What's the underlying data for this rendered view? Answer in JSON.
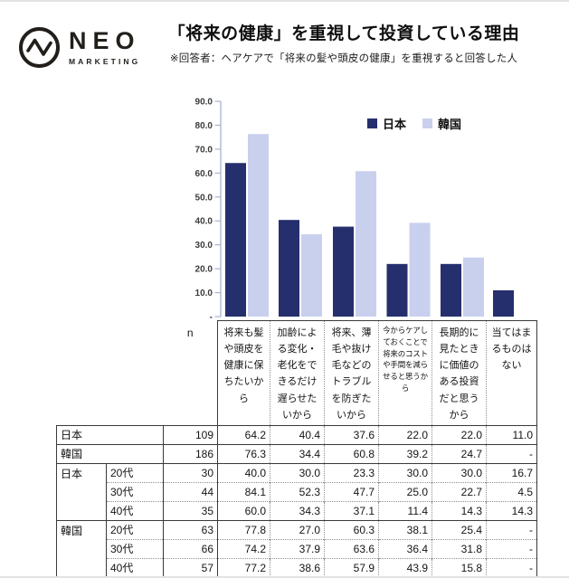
{
  "logo": {
    "name": "NEO",
    "tagline": "MARKETING"
  },
  "header": {
    "title": "「将来の健康」を重視して投資している理由",
    "subtitle": "※回答者：ヘアケアで「将来の髪や頭皮の健康」を重視すると回答した人"
  },
  "chart_data": {
    "type": "bar",
    "title": "「将来の健康」を重視して投資している理由",
    "categories": [
      "将来も髪や頭皮を健康に保ちたいから",
      "加齢による変化・老化をできるだけ遅らせたいから",
      "将来、薄毛や抜け毛などのトラブルを防ぎたいから",
      "今からケアしておくことで将来のコストや手間を減らせると思うから",
      "長期的に見たときに価値のある投資だと思うから",
      "当てはまるものはない"
    ],
    "series": [
      {
        "name": "日本",
        "color": "#262f6d",
        "values": [
          64.2,
          40.4,
          37.6,
          22.0,
          22.0,
          11.0
        ]
      },
      {
        "name": "韓国",
        "color": "#c9d0ee",
        "values": [
          76.3,
          34.4,
          60.8,
          39.2,
          24.7,
          null
        ]
      }
    ],
    "ylim": [
      0,
      90
    ],
    "ytick_step": 10,
    "ytick_labels_top_down": [
      "90.0",
      "80.0",
      "70.0",
      "60.0",
      "50.0",
      "40.0",
      "30.0",
      "20.0",
      "10.0",
      "-"
    ],
    "grid": false,
    "legend_position": "top-right",
    "axis_color": "#a8b2d4",
    "tick_label_color": "#3b3b3b"
  },
  "table": {
    "n_label": "n",
    "rows": [
      {
        "group": "日本",
        "age": null,
        "n": "109",
        "values": [
          "64.2",
          "40.4",
          "37.6",
          "22.0",
          "22.0",
          "11.0"
        ]
      },
      {
        "group": "韓国",
        "age": null,
        "n": "186",
        "values": [
          "76.3",
          "34.4",
          "60.8",
          "39.2",
          "24.7",
          "-"
        ]
      },
      {
        "group": "日本",
        "age": "20代",
        "n": "30",
        "values": [
          "40.0",
          "30.0",
          "23.3",
          "30.0",
          "30.0",
          "16.7"
        ]
      },
      {
        "group": "",
        "age": "30代",
        "n": "44",
        "values": [
          "84.1",
          "52.3",
          "47.7",
          "25.0",
          "22.7",
          "4.5"
        ]
      },
      {
        "group": "",
        "age": "40代",
        "n": "35",
        "values": [
          "60.0",
          "34.3",
          "37.1",
          "11.4",
          "14.3",
          "14.3"
        ]
      },
      {
        "group": "韓国",
        "age": "20代",
        "n": "63",
        "values": [
          "77.8",
          "27.0",
          "60.3",
          "38.1",
          "25.4",
          "-"
        ]
      },
      {
        "group": "",
        "age": "30代",
        "n": "66",
        "values": [
          "74.2",
          "37.9",
          "63.6",
          "36.4",
          "31.8",
          "-"
        ]
      },
      {
        "group": "",
        "age": "40代",
        "n": "57",
        "values": [
          "77.2",
          "38.6",
          "57.9",
          "43.9",
          "15.8",
          "-"
        ]
      }
    ]
  }
}
